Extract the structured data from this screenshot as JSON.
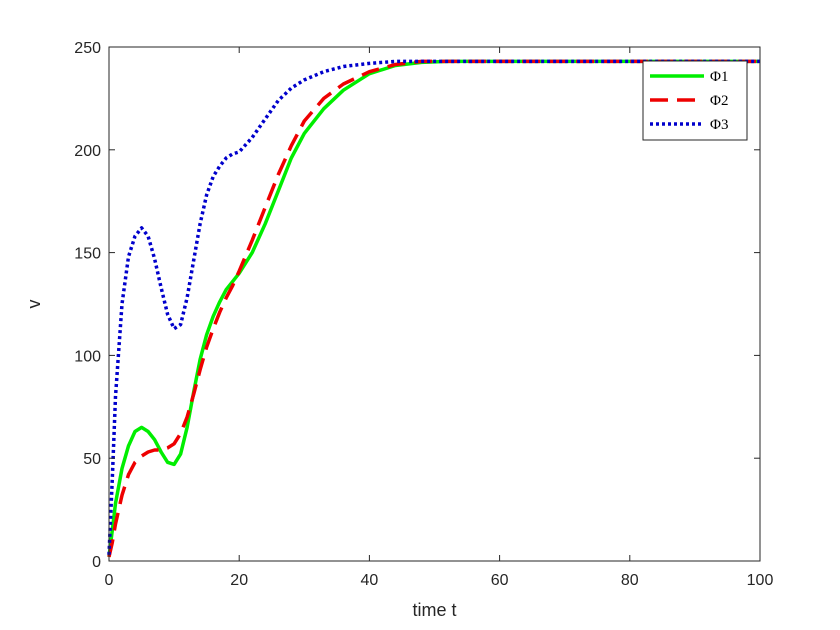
{
  "chart_data": {
    "type": "line",
    "title": "",
    "xlabel": "time t",
    "ylabel": "v",
    "xlim": [
      0,
      100
    ],
    "ylim": [
      0,
      250
    ],
    "xticks": [
      0,
      20,
      40,
      60,
      80,
      100
    ],
    "yticks": [
      0,
      50,
      100,
      150,
      200,
      250
    ],
    "grid": false,
    "legend_position": "top-right",
    "series": [
      {
        "name": "Φ1",
        "color": "#00ee00",
        "style": "solid",
        "x": [
          0,
          0.5,
          1,
          2,
          3,
          4,
          5,
          6,
          7,
          8,
          9,
          10,
          11,
          12,
          13,
          14,
          15,
          16,
          17,
          18,
          19,
          20,
          22,
          24,
          26,
          28,
          30,
          33,
          36,
          40,
          44,
          48,
          52,
          55,
          60,
          70,
          80,
          90,
          100
        ],
        "y": [
          2,
          15,
          28,
          45,
          56,
          63,
          65,
          63,
          59,
          53,
          48,
          47,
          52,
          65,
          82,
          98,
          110,
          119,
          126,
          132,
          136,
          140,
          150,
          164,
          180,
          196,
          208,
          220,
          229,
          237,
          241,
          242.5,
          243,
          243,
          243,
          243,
          243,
          243,
          243
        ]
      },
      {
        "name": "Φ2",
        "color": "#ee0000",
        "style": "dashed",
        "x": [
          0,
          0.5,
          1,
          2,
          3,
          4,
          5,
          6,
          7,
          8,
          9,
          10,
          11,
          12,
          13,
          14,
          15,
          16,
          17,
          18,
          19,
          20,
          22,
          24,
          26,
          28,
          30,
          33,
          36,
          40,
          44,
          48,
          52,
          55,
          60,
          70,
          80,
          90,
          100
        ],
        "y": [
          2,
          9,
          18,
          32,
          42,
          48,
          51,
          53,
          54,
          54,
          55,
          57,
          62,
          70,
          81,
          93,
          104,
          113,
          121,
          128,
          134,
          141,
          156,
          172,
          188,
          202,
          214,
          225,
          232,
          238,
          241.5,
          243,
          243,
          243,
          243,
          243,
          243,
          243,
          243
        ]
      },
      {
        "name": "Φ3",
        "color": "#0000cc",
        "style": "dotted",
        "x": [
          0,
          0.5,
          1,
          2,
          3,
          4,
          5,
          6,
          7,
          8,
          9,
          10,
          11,
          12,
          13,
          14,
          15,
          16,
          17,
          18,
          19,
          20,
          22,
          24,
          26,
          28,
          30,
          33,
          36,
          40,
          44,
          48,
          52,
          55,
          60,
          70,
          80,
          90,
          100
        ],
        "y": [
          3,
          40,
          80,
          125,
          148,
          158,
          162,
          158,
          147,
          133,
          120,
          113,
          115,
          128,
          146,
          164,
          178,
          187,
          192,
          196,
          198,
          199,
          206,
          215,
          224,
          230,
          234,
          238,
          240.5,
          242,
          243,
          243,
          243,
          243,
          243,
          243,
          243,
          243,
          243
        ]
      }
    ]
  }
}
